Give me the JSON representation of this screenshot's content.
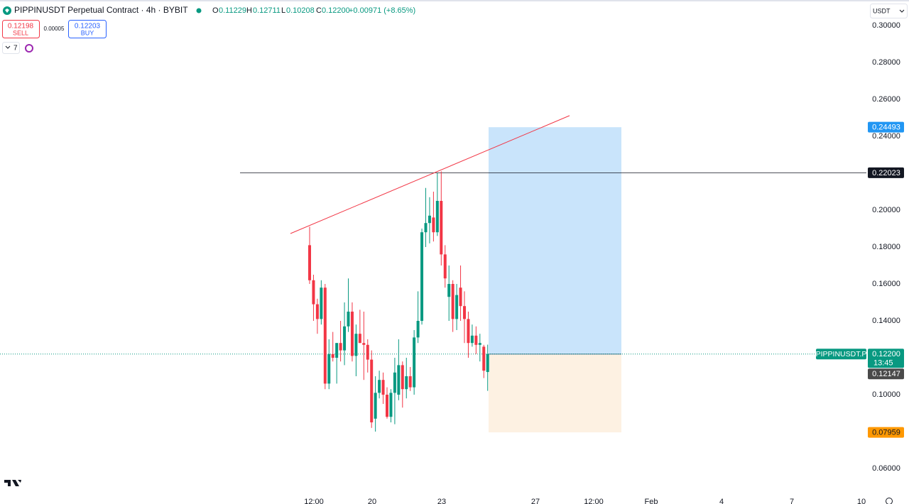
{
  "toolbar": {
    "symbol": "PIPPINUSDT Perpetual Contract · 4h · BYBIT",
    "ohlc": [
      {
        "key": "O",
        "value": "0.11229"
      },
      {
        "key": "H",
        "value": "0.12711"
      },
      {
        "key": "L",
        "value": "0.10208"
      },
      {
        "key": "C",
        "value": "0.12200"
      }
    ],
    "change": "+0.00971 (+8.65%)"
  },
  "trade": {
    "sell_price": "0.12198",
    "sell": "SELL",
    "spread": "0.00005",
    "buy_price": "0.12203",
    "buy": "BUY"
  },
  "indicators_count": "7",
  "currency": "USDT",
  "chart_data": {
    "type": "candlestick",
    "up_color": "#089981",
    "down_color": "#f23645",
    "open": [
      0.181,
      0.162,
      0.149,
      0.141,
      0.158,
      0.106,
      0.122,
      0.12,
      0.128,
      0.124,
      0.137,
      0.145,
      0.121,
      0.133,
      0.128,
      0.127,
      0.119,
      0.087,
      0.101,
      0.108,
      0.1,
      0.088,
      0.101,
      0.1,
      0.116,
      0.103,
      0.11,
      0.104,
      0.131,
      0.14,
      0.188,
      0.193,
      0.196,
      0.188,
      0.205,
      0.176,
      0.153,
      0.16,
      0.141,
      0.158,
      0.148,
      0.141,
      0.128,
      0.132,
      0.127,
      0.126,
      0.11229
    ],
    "high": [
      0.191,
      0.165,
      0.152,
      0.162,
      0.16,
      0.13,
      0.134,
      0.128,
      0.14,
      0.15,
      0.163,
      0.15,
      0.138,
      0.146,
      0.145,
      0.13,
      0.124,
      0.11,
      0.113,
      0.112,
      0.104,
      0.103,
      0.12,
      0.13,
      0.118,
      0.12,
      0.115,
      0.135,
      0.156,
      0.19,
      0.212,
      0.207,
      0.21,
      0.22,
      0.221,
      0.181,
      0.17,
      0.162,
      0.16,
      0.17,
      0.156,
      0.145,
      0.138,
      0.137,
      0.133,
      0.127,
      0.12711
    ],
    "low": [
      0.16,
      0.14,
      0.133,
      0.138,
      0.103,
      0.103,
      0.118,
      0.106,
      0.118,
      0.116,
      0.134,
      0.118,
      0.11,
      0.128,
      0.108,
      0.112,
      0.082,
      0.08,
      0.098,
      0.095,
      0.087,
      0.085,
      0.084,
      0.097,
      0.093,
      0.098,
      0.102,
      0.1,
      0.128,
      0.138,
      0.18,
      0.182,
      0.183,
      0.186,
      0.17,
      0.158,
      0.14,
      0.134,
      0.135,
      0.14,
      0.128,
      0.12,
      0.126,
      0.122,
      0.118,
      0.109,
      0.10208
    ],
    "close": [
      0.162,
      0.149,
      0.141,
      0.158,
      0.106,
      0.122,
      0.12,
      0.128,
      0.124,
      0.137,
      0.145,
      0.121,
      0.133,
      0.128,
      0.127,
      0.119,
      0.085,
      0.101,
      0.108,
      0.1,
      0.088,
      0.101,
      0.112,
      0.116,
      0.103,
      0.11,
      0.104,
      0.131,
      0.14,
      0.188,
      0.193,
      0.197,
      0.188,
      0.205,
      0.176,
      0.163,
      0.16,
      0.141,
      0.154,
      0.148,
      0.141,
      0.128,
      0.132,
      0.127,
      0.128,
      0.113,
      0.122
    ],
    "ylim": [
      0.05,
      0.31
    ],
    "yticks": [
      {
        "value": 0.3,
        "label": "0.30000"
      },
      {
        "value": 0.28,
        "label": "0.28000"
      },
      {
        "value": 0.26,
        "label": "0.26000"
      },
      {
        "value": 0.24,
        "label": "0.24000"
      },
      {
        "value": 0.2,
        "label": "0.20000"
      },
      {
        "value": 0.18,
        "label": "0.18000"
      },
      {
        "value": 0.16,
        "label": "0.16000"
      },
      {
        "value": 0.14,
        "label": "0.14000"
      },
      {
        "value": 0.1,
        "label": "0.10000"
      },
      {
        "value": 0.06,
        "label": "0.06000"
      }
    ],
    "xticks": [
      "12:00",
      "20",
      "23",
      "27",
      "12:00",
      "Feb",
      "4",
      "7",
      "10"
    ],
    "drawings": {
      "trendline": {
        "start": 0.1873,
        "end": 0.2512
      },
      "horizontal_line": {
        "value": 0.22023,
        "label": "0.22023"
      },
      "position": {
        "target": {
          "value": 0.24493,
          "label": "0.24493"
        },
        "entry": 0.122,
        "stop": {
          "value": 0.07959,
          "label": "0.07959"
        }
      }
    },
    "last_price": {
      "value": 0.122,
      "label": "0.12200",
      "symbol": "PIPPINUSDT.P",
      "countdown": "13:45"
    },
    "mark_price": {
      "value": 0.12147,
      "label": "0.12147"
    }
  }
}
